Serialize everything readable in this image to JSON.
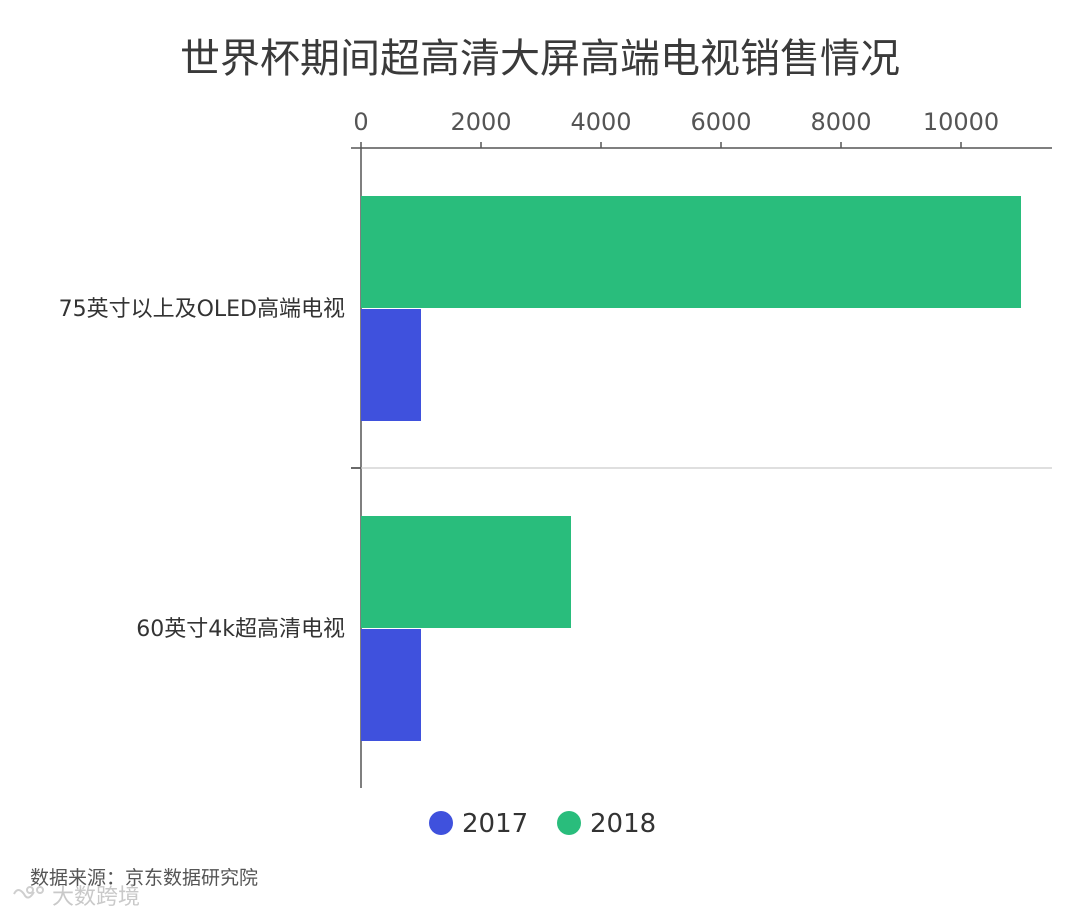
{
  "chart_data": {
    "type": "bar",
    "orientation": "horizontal",
    "title": "世界杯期间超高清大屏高端电视销售情况",
    "categories": [
      "75英寸以上及OLED高端电视",
      "60英寸4k超高清电视"
    ],
    "series": [
      {
        "name": "2017",
        "color": "#3f51dd",
        "values": [
          1000,
          1000
        ]
      },
      {
        "name": "2018",
        "color": "#29bd7c",
        "values": [
          11000,
          3500
        ]
      }
    ],
    "x_ticks": [
      0,
      2000,
      4000,
      6000,
      8000,
      10000
    ],
    "xlim": [
      0,
      11500
    ],
    "x_axis_position": "top",
    "legend_position": "bottom",
    "grid": false
  },
  "footer": {
    "source": "数据来源：京东数据研究院",
    "watermark": "大数跨境"
  }
}
